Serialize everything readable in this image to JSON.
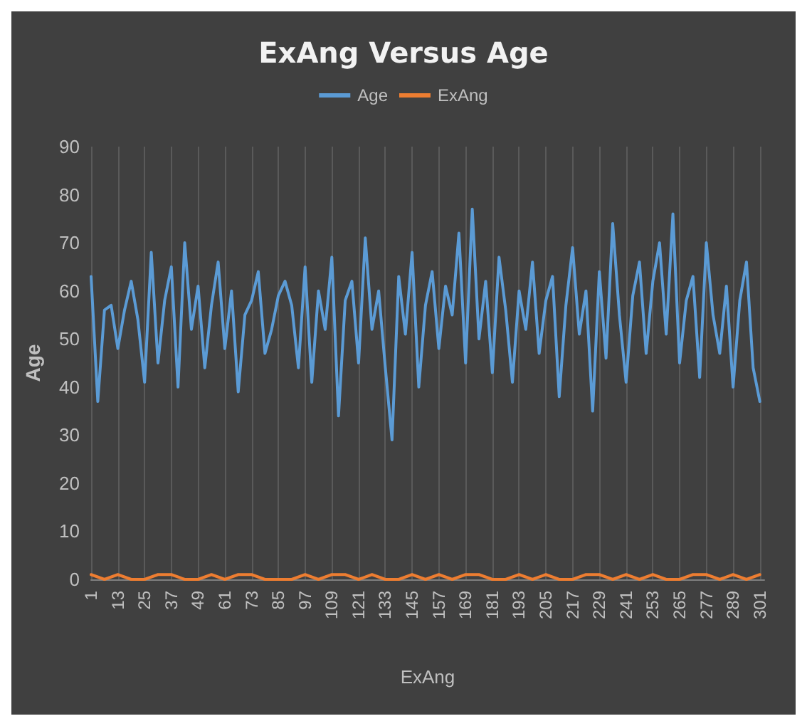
{
  "chart_data": {
    "type": "line",
    "title": "ExAng Versus Age",
    "xlabel": "ExAng",
    "ylabel": "Age",
    "legend": "top",
    "grid": "x",
    "marker": "none",
    "line_style": "solid",
    "xlim": [
      1,
      303
    ],
    "xticks": [
      1,
      13,
      25,
      37,
      49,
      61,
      73,
      85,
      97,
      109,
      121,
      133,
      145,
      157,
      169,
      181,
      193,
      205,
      217,
      229,
      241,
      253,
      265,
      277,
      289,
      301
    ],
    "ylim": [
      0,
      90
    ],
    "yticks": [
      0,
      10,
      20,
      30,
      40,
      50,
      60,
      70,
      80,
      90
    ],
    "series": [
      {
        "name": "Age",
        "color": "#5b9bd5",
        "x": [
          1,
          4,
          7,
          10,
          13,
          16,
          19,
          22,
          25,
          28,
          31,
          34,
          37,
          40,
          43,
          46,
          49,
          52,
          55,
          58,
          61,
          64,
          67,
          70,
          73,
          76,
          79,
          82,
          85,
          88,
          91,
          94,
          97,
          100,
          103,
          106,
          109,
          112,
          115,
          118,
          121,
          124,
          127,
          130,
          133,
          136,
          139,
          142,
          145,
          148,
          151,
          154,
          157,
          160,
          163,
          166,
          169,
          172,
          175,
          178,
          181,
          184,
          187,
          190,
          193,
          196,
          199,
          202,
          205,
          208,
          211,
          214,
          217,
          220,
          223,
          226,
          229,
          232,
          235,
          238,
          241,
          244,
          247,
          250,
          253,
          256,
          259,
          262,
          265,
          268,
          271,
          274,
          277,
          280,
          283,
          286,
          289,
          292,
          295,
          298,
          301
        ],
        "values": [
          63,
          37,
          56,
          57,
          48,
          56,
          62,
          54,
          41,
          68,
          45,
          58,
          65,
          40,
          70,
          52,
          61,
          44,
          57,
          66,
          48,
          60,
          39,
          55,
          58,
          64,
          47,
          52,
          59,
          62,
          57,
          44,
          65,
          41,
          60,
          52,
          67,
          34,
          58,
          62,
          45,
          71,
          52,
          60,
          44,
          29,
          63,
          51,
          68,
          40,
          57,
          64,
          48,
          61,
          55,
          72,
          45,
          77,
          50,
          62,
          43,
          67,
          56,
          41,
          60,
          52,
          66,
          47,
          58,
          63,
          38,
          57,
          69,
          51,
          60,
          35,
          64,
          46,
          74,
          55,
          41,
          59,
          66,
          47,
          62,
          70,
          51,
          76,
          45,
          58,
          63,
          42,
          70,
          55,
          47,
          61,
          40,
          58,
          66,
          44,
          37
        ]
      },
      {
        "name": "ExAng",
        "color": "#ed7d31",
        "x": [
          1,
          7,
          13,
          19,
          25,
          31,
          37,
          43,
          49,
          55,
          61,
          67,
          73,
          79,
          85,
          91,
          97,
          103,
          109,
          115,
          121,
          127,
          133,
          139,
          145,
          151,
          157,
          163,
          169,
          175,
          181,
          187,
          193,
          199,
          205,
          211,
          217,
          223,
          229,
          235,
          241,
          247,
          253,
          259,
          265,
          271,
          277,
          283,
          289,
          295,
          301
        ],
        "values": [
          1,
          0,
          1,
          0,
          0,
          1,
          1,
          0,
          0,
          1,
          0,
          1,
          1,
          0,
          0,
          0,
          1,
          0,
          1,
          1,
          0,
          1,
          0,
          0,
          1,
          0,
          1,
          0,
          1,
          1,
          0,
          0,
          1,
          0,
          1,
          0,
          0,
          1,
          1,
          0,
          1,
          0,
          1,
          0,
          0,
          1,
          1,
          0,
          1,
          0,
          1
        ]
      }
    ]
  }
}
